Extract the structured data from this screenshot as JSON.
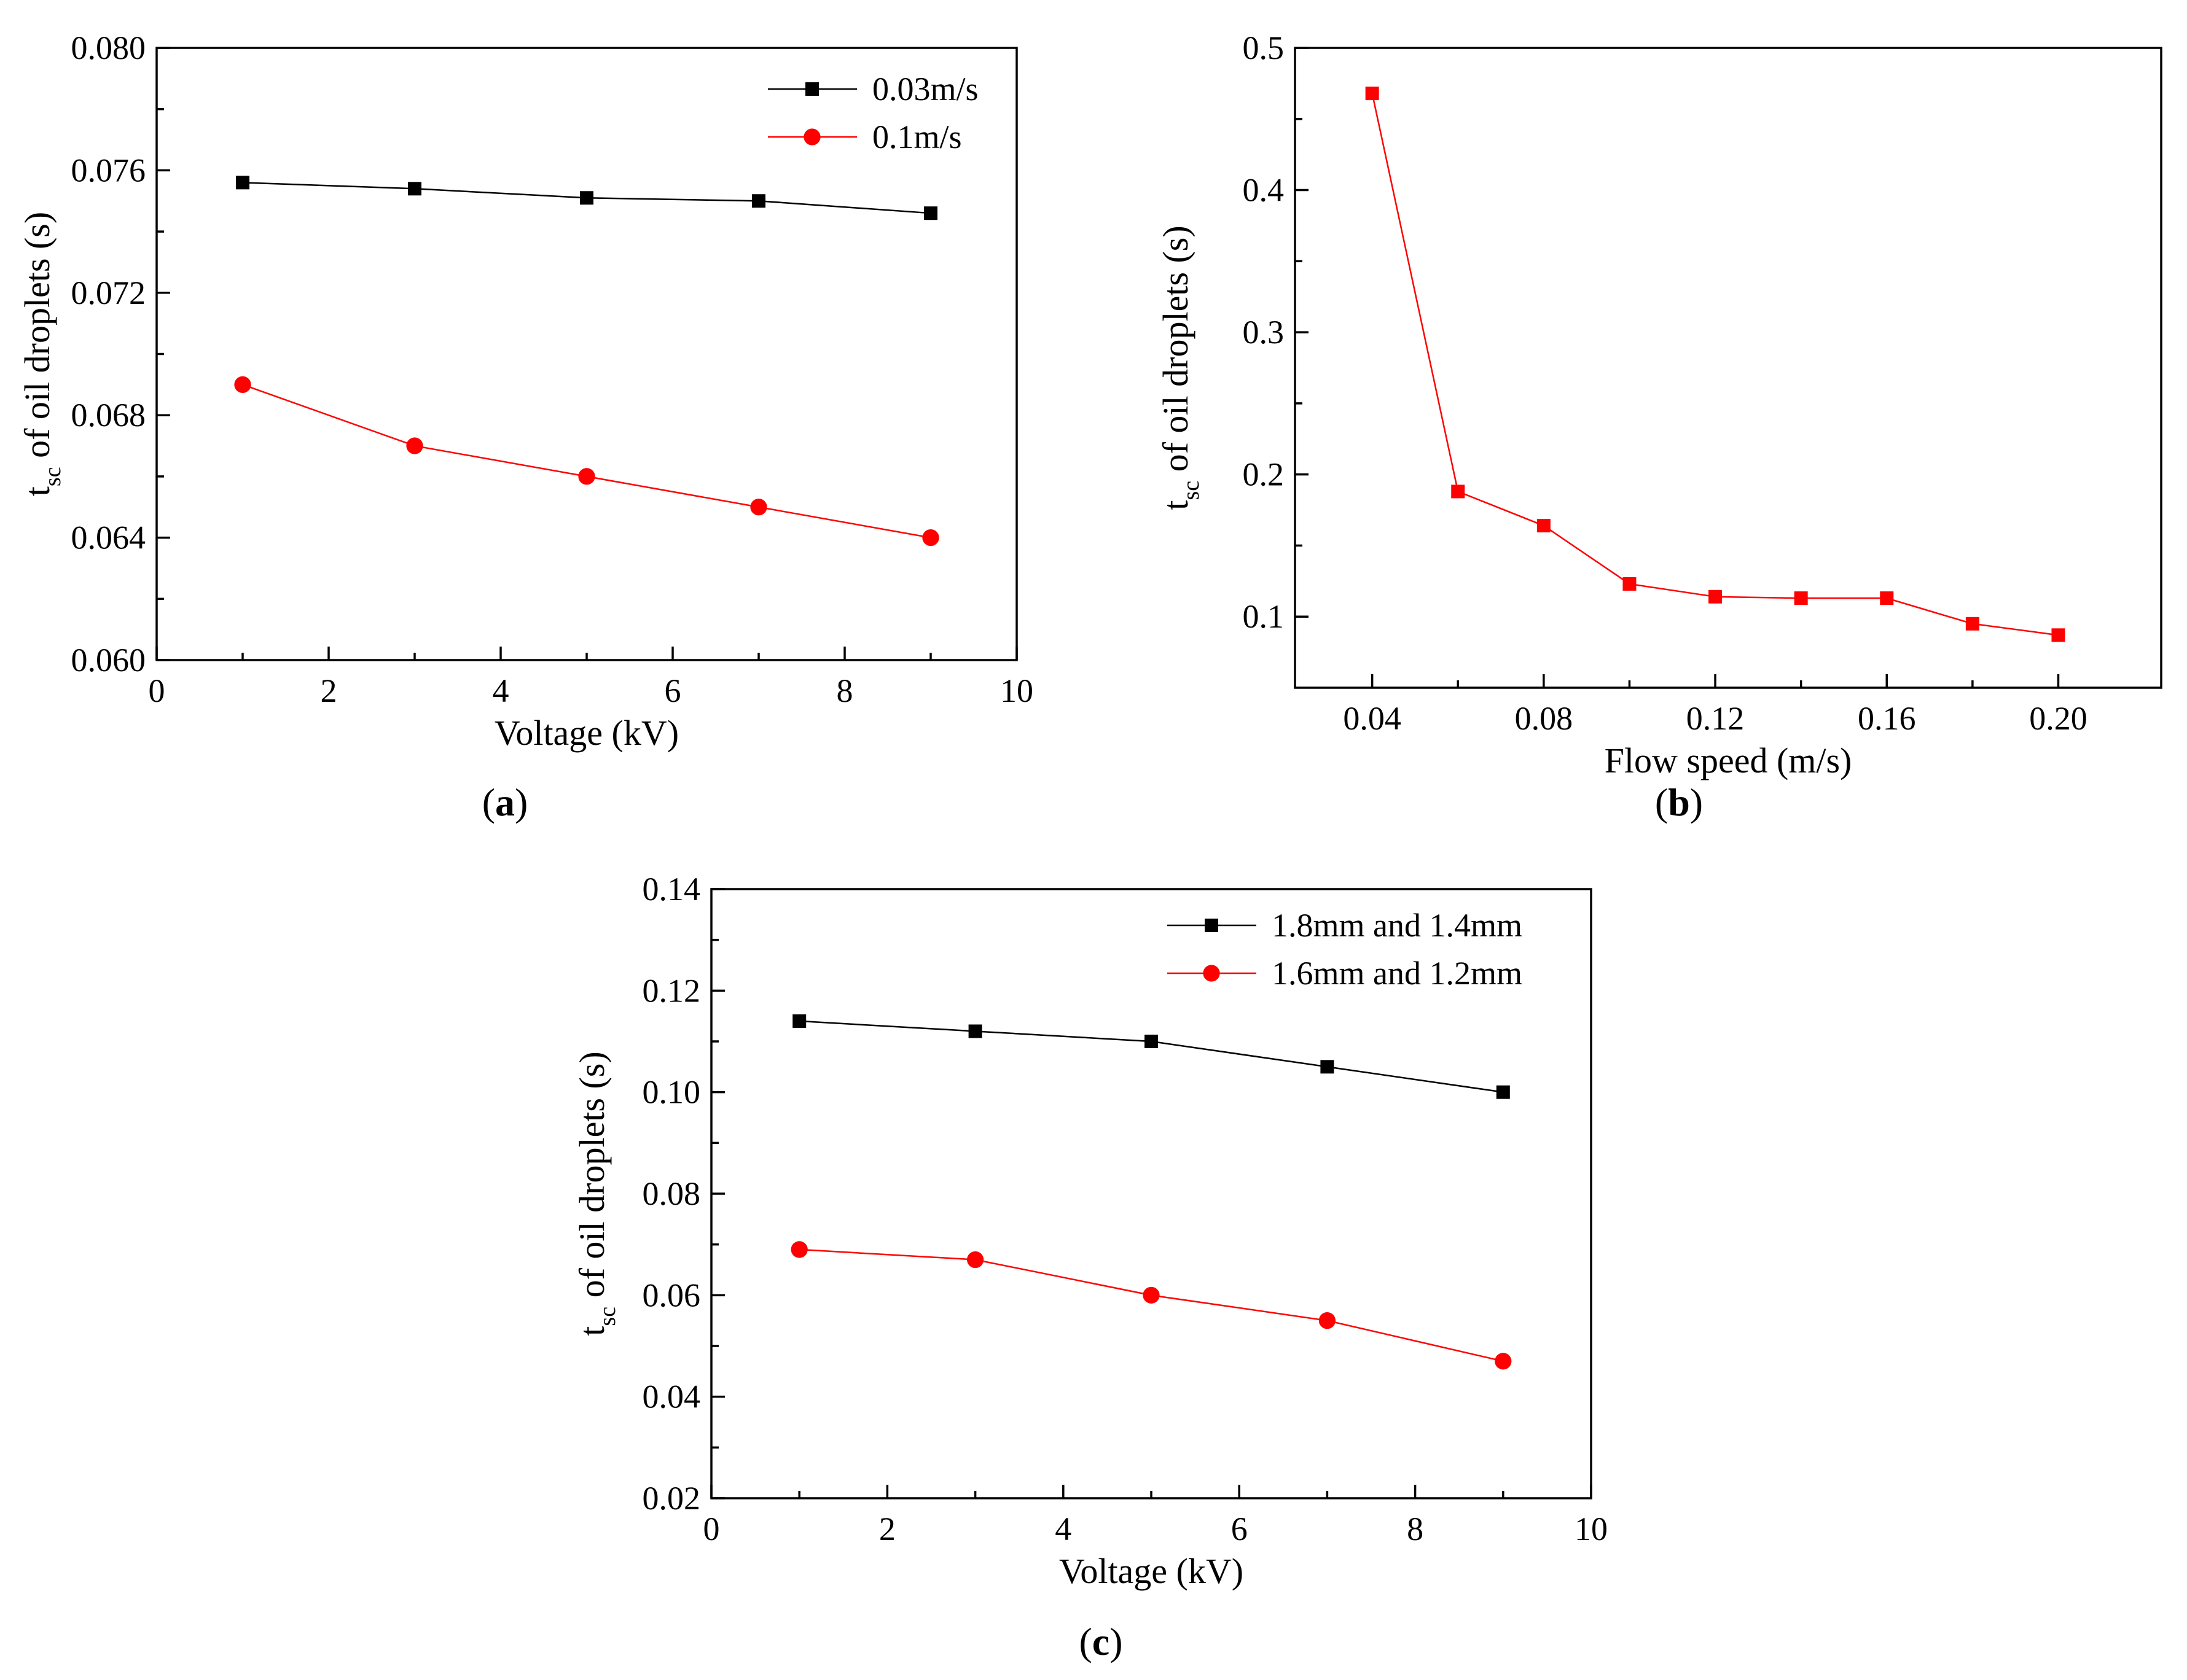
{
  "chart_data": [
    {
      "id": "a",
      "type": "line",
      "caption": "a",
      "xlabel": "Voltage (kV)",
      "ylabel_main": "t",
      "ylabel_sub": "sc",
      "ylabel_rest": " of oil droplets (s)",
      "xlim": [
        0,
        10
      ],
      "ylim": [
        0.06,
        0.08
      ],
      "xticks": [
        0,
        2,
        4,
        6,
        8,
        10
      ],
      "xtick_labels": [
        "0",
        "2",
        "4",
        "6",
        "8",
        "10"
      ],
      "yticks": [
        0.06,
        0.064,
        0.068,
        0.072,
        0.076,
        0.08
      ],
      "ytick_labels": [
        "0.060",
        "0.064",
        "0.068",
        "0.072",
        "0.076",
        "0.080"
      ],
      "legend_position": "top-right",
      "series": [
        {
          "name": "0.03m/s",
          "color": "#000000",
          "marker": "square",
          "x": [
            1,
            3,
            5,
            7,
            9
          ],
          "y": [
            0.0756,
            0.0754,
            0.0751,
            0.075,
            0.0746
          ]
        },
        {
          "name": "0.1m/s",
          "color": "#ff0000",
          "marker": "circle",
          "x": [
            1,
            3,
            5,
            7,
            9
          ],
          "y": [
            0.069,
            0.067,
            0.066,
            0.065,
            0.064
          ]
        }
      ]
    },
    {
      "id": "b",
      "type": "line",
      "caption": "b",
      "xlabel": "Flow speed (m/s)",
      "ylabel_main": "t",
      "ylabel_sub": "sc",
      "ylabel_rest": " of oil droplets (s)",
      "xlim": [
        0.022,
        0.224
      ],
      "ylim": [
        0.05,
        0.5
      ],
      "xticks": [
        0.04,
        0.08,
        0.12,
        0.16,
        0.2
      ],
      "xtick_labels": [
        "0.04",
        "0.08",
        "0.12",
        "0.16",
        "0.20"
      ],
      "yticks": [
        0.1,
        0.2,
        0.3,
        0.4,
        0.5
      ],
      "ytick_labels": [
        "0.1",
        "0.2",
        "0.3",
        "0.4",
        "0.5"
      ],
      "legend_position": "none",
      "series": [
        {
          "name": "",
          "color": "#ff0000",
          "marker": "square",
          "x": [
            0.04,
            0.06,
            0.08,
            0.1,
            0.12,
            0.14,
            0.16,
            0.18,
            0.2
          ],
          "y": [
            0.468,
            0.188,
            0.164,
            0.123,
            0.114,
            0.113,
            0.113,
            0.095,
            0.087
          ]
        }
      ]
    },
    {
      "id": "c",
      "type": "line",
      "caption": "c",
      "xlabel": "Voltage (kV)",
      "ylabel_main": "t",
      "ylabel_sub": "sc",
      "ylabel_rest": " of oil droplets (s)",
      "xlim": [
        0,
        10
      ],
      "ylim": [
        0.02,
        0.14
      ],
      "xticks": [
        0,
        2,
        4,
        6,
        8,
        10
      ],
      "xtick_labels": [
        "0",
        "2",
        "4",
        "6",
        "8",
        "10"
      ],
      "yticks": [
        0.02,
        0.04,
        0.06,
        0.08,
        0.1,
        0.12,
        0.14
      ],
      "ytick_labels": [
        "0.02",
        "0.04",
        "0.06",
        "0.08",
        "0.10",
        "0.12",
        "0.14"
      ],
      "legend_position": "top-right",
      "series": [
        {
          "name": "1.8mm and 1.4mm",
          "color": "#000000",
          "marker": "square",
          "x": [
            1,
            3,
            5,
            7,
            9
          ],
          "y": [
            0.114,
            0.112,
            0.11,
            0.105,
            0.1
          ]
        },
        {
          "name": "1.6mm and 1.2mm",
          "color": "#ff0000",
          "marker": "circle",
          "x": [
            1,
            3,
            5,
            7,
            9
          ],
          "y": [
            0.069,
            0.067,
            0.06,
            0.055,
            0.047
          ]
        }
      ]
    }
  ]
}
